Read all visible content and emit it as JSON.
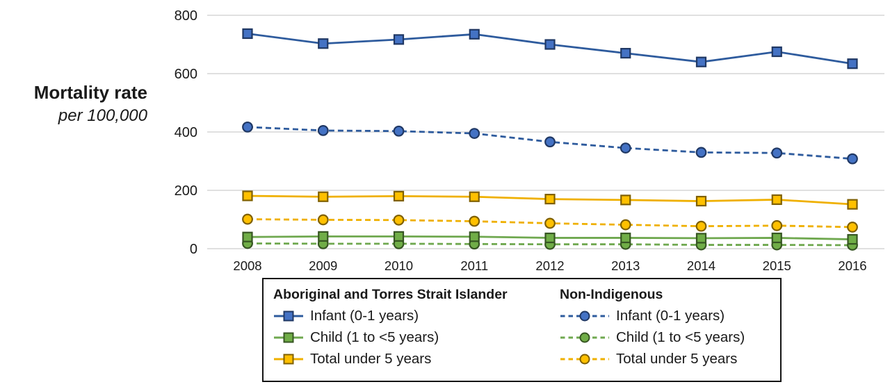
{
  "chart_data": {
    "type": "line",
    "x": [
      2008,
      2009,
      2010,
      2011,
      2012,
      2013,
      2014,
      2015,
      2016
    ],
    "ylabel": {
      "line1": "Mortality rate",
      "line2": "per 100,000"
    },
    "ylim": [
      0,
      800
    ],
    "yticks": [
      0,
      200,
      400,
      600,
      800
    ],
    "grid": "horizontal-only",
    "gridline_color": "#d6d6d6",
    "legend_position": "bottom",
    "series": [
      {
        "id": "atsi-infant",
        "group": "Aboriginal and Torres Strait Islander",
        "label": "Infant (0-1 years)",
        "line": "solid",
        "marker": "square",
        "color": "#2e5b9d",
        "marker_fill": "#4472c4",
        "marker_edge": "#203864",
        "values": [
          737,
          703,
          717,
          735,
          700,
          670,
          640,
          675,
          634
        ]
      },
      {
        "id": "atsi-child",
        "group": "Aboriginal and Torres Strait Islander",
        "label": "Child (1 to <5 years)",
        "line": "solid",
        "marker": "square",
        "color": "#6fa84f",
        "marker_fill": "#70ad47",
        "marker_edge": "#375623",
        "values": [
          40,
          42,
          42,
          41,
          37,
          37,
          36,
          37,
          32
        ]
      },
      {
        "id": "atsi-total",
        "group": "Aboriginal and Torres Strait Islander",
        "label": "Total under 5 years",
        "line": "solid",
        "marker": "square",
        "color": "#efb000",
        "marker_fill": "#ffc000",
        "marker_edge": "#7f6000",
        "values": [
          181,
          178,
          180,
          178,
          170,
          167,
          163,
          168,
          152
        ]
      },
      {
        "id": "nonind-infant",
        "group": "Non-Indigenous",
        "label": "Infant (0-1 years)",
        "line": "dashed",
        "marker": "circle",
        "color": "#2e5b9d",
        "marker_fill": "#4472c4",
        "marker_edge": "#203864",
        "values": [
          417,
          405,
          403,
          395,
          366,
          345,
          330,
          328,
          308
        ]
      },
      {
        "id": "nonind-child",
        "group": "Non-Indigenous",
        "label": "Child (1 to <5 years)",
        "line": "dashed",
        "marker": "circle",
        "color": "#6fa84f",
        "marker_fill": "#70ad47",
        "marker_edge": "#375623",
        "values": [
          18,
          17,
          17,
          16,
          15,
          15,
          13,
          13,
          12
        ]
      },
      {
        "id": "nonind-total",
        "group": "Non-Indigenous",
        "label": "Total under 5 years",
        "line": "dashed",
        "marker": "circle",
        "color": "#efb000",
        "marker_fill": "#ffc000",
        "marker_edge": "#7f6000",
        "values": [
          101,
          99,
          98,
          94,
          87,
          82,
          77,
          79,
          74
        ]
      }
    ]
  },
  "legend": {
    "columns": [
      {
        "header": "Aboriginal and Torres Strait Islander",
        "series": [
          0,
          1,
          2
        ]
      },
      {
        "header": "Non-Indigenous",
        "series": [
          3,
          4,
          5
        ]
      }
    ]
  }
}
